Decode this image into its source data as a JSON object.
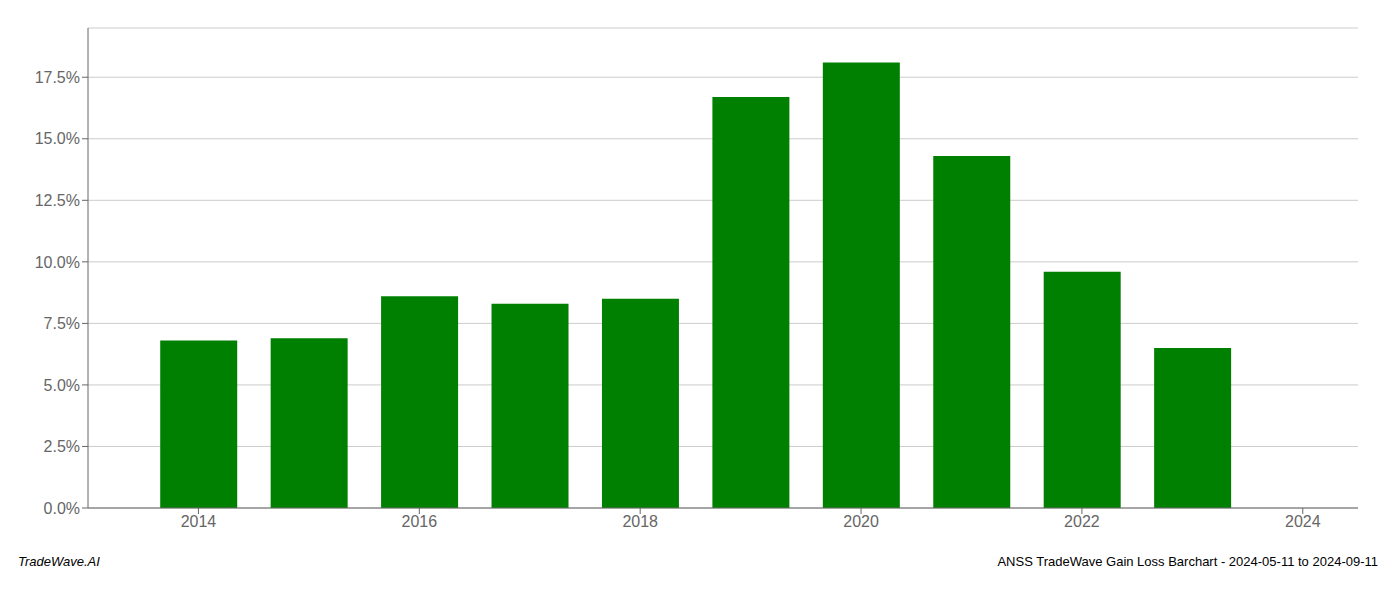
{
  "chart_data": {
    "type": "bar",
    "x": [
      2014,
      2015,
      2016,
      2017,
      2018,
      2019,
      2020,
      2021,
      2022,
      2023
    ],
    "values": [
      0.068,
      0.069,
      0.086,
      0.083,
      0.085,
      0.167,
      0.181,
      0.143,
      0.096,
      0.065
    ],
    "color": "#008000",
    "xlim": [
      2013.0,
      2024.5
    ],
    "xticks": [
      2014,
      2016,
      2018,
      2020,
      2022,
      2024
    ],
    "ylim": [
      0,
      0.195
    ],
    "yticks": [
      {
        "value": 0.0,
        "label": "0.0%"
      },
      {
        "value": 0.025,
        "label": "2.5%"
      },
      {
        "value": 0.05,
        "label": "5.0%"
      },
      {
        "value": 0.075,
        "label": "7.5%"
      },
      {
        "value": 0.1,
        "label": "10.0%"
      },
      {
        "value": 0.125,
        "label": "12.5%"
      },
      {
        "value": 0.15,
        "label": "15.0%"
      },
      {
        "value": 0.175,
        "label": "17.5%"
      }
    ],
    "grid": true,
    "annotations": [
      "TradeWave.AI",
      "ANSS TradeWave Gain Loss Barchart - 2024-05-11 to 2024-09-11"
    ]
  }
}
